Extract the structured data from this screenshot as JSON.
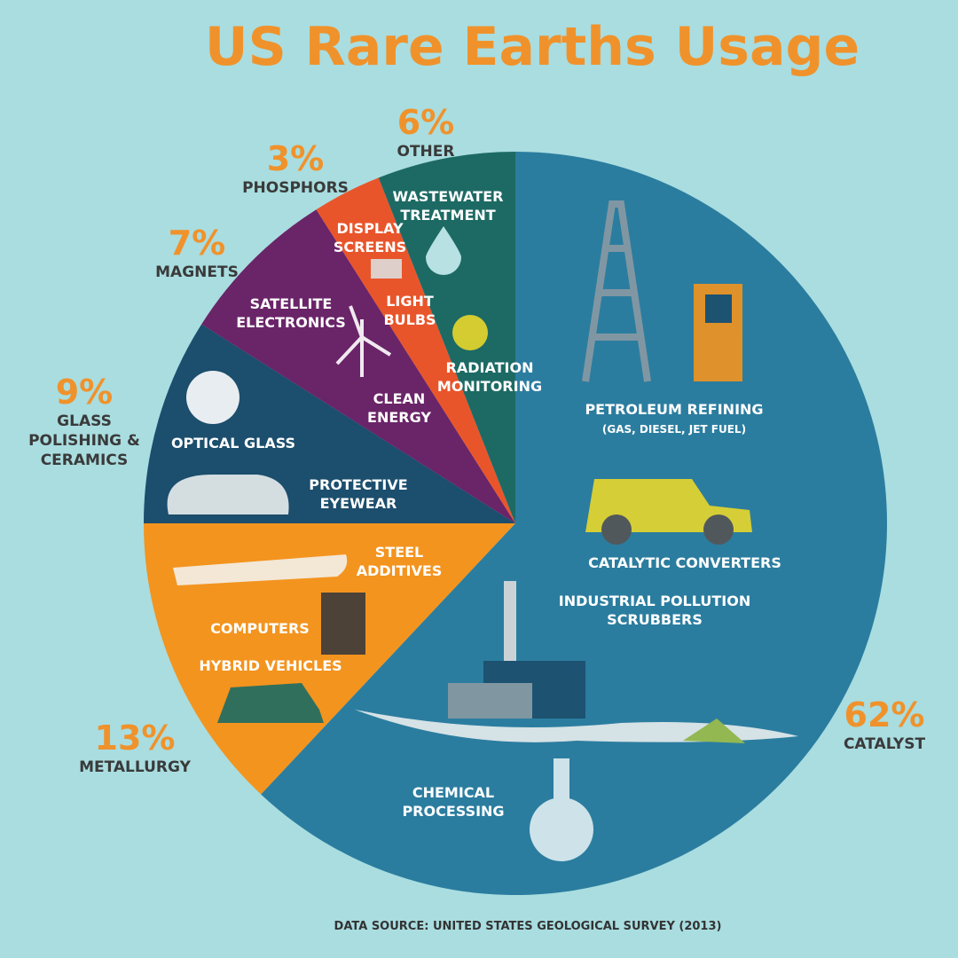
{
  "chart_data": {
    "type": "pie",
    "title": "US Rare Earths Usage",
    "categories": [
      "CATALYST",
      "METALLURGY",
      "GLASS POLISHING & CERAMICS",
      "MAGNETS",
      "PHOSPHORS",
      "OTHER"
    ],
    "values": [
      62,
      13,
      9,
      7,
      3,
      6
    ],
    "value_labels": [
      "62%",
      "13%",
      "9%",
      "7%",
      "3%",
      "6%"
    ],
    "colors": [
      "#2b7d9f",
      "#f3941f",
      "#1c4e6d",
      "#6a2468",
      "#e9552b",
      "#1d6a64"
    ],
    "annotations": [
      "WASTEWATER TREATMENT",
      "DISPLAY SCREENS",
      "LIGHT BULBS",
      "RADIATION MONITORING",
      "SATELLITE ELECTRONICS",
      "CLEAN ENERGY",
      "OPTICAL GLASS",
      "PROTECTIVE EYEWEAR",
      "PETROLEUM REFINING",
      "(GAS, DIESEL, JET FUEL)",
      "CATALYTIC CONVERTERS",
      "INDUSTRIAL POLLUTION SCRUBBERS",
      "CHEMICAL PROCESSING",
      "STEEL ADDITIVES",
      "COMPUTERS",
      "HYBRID VEHICLES"
    ],
    "source": "DATA SOURCE: UNITED STATES GEOLOGICAL SURVEY (2013)"
  }
}
